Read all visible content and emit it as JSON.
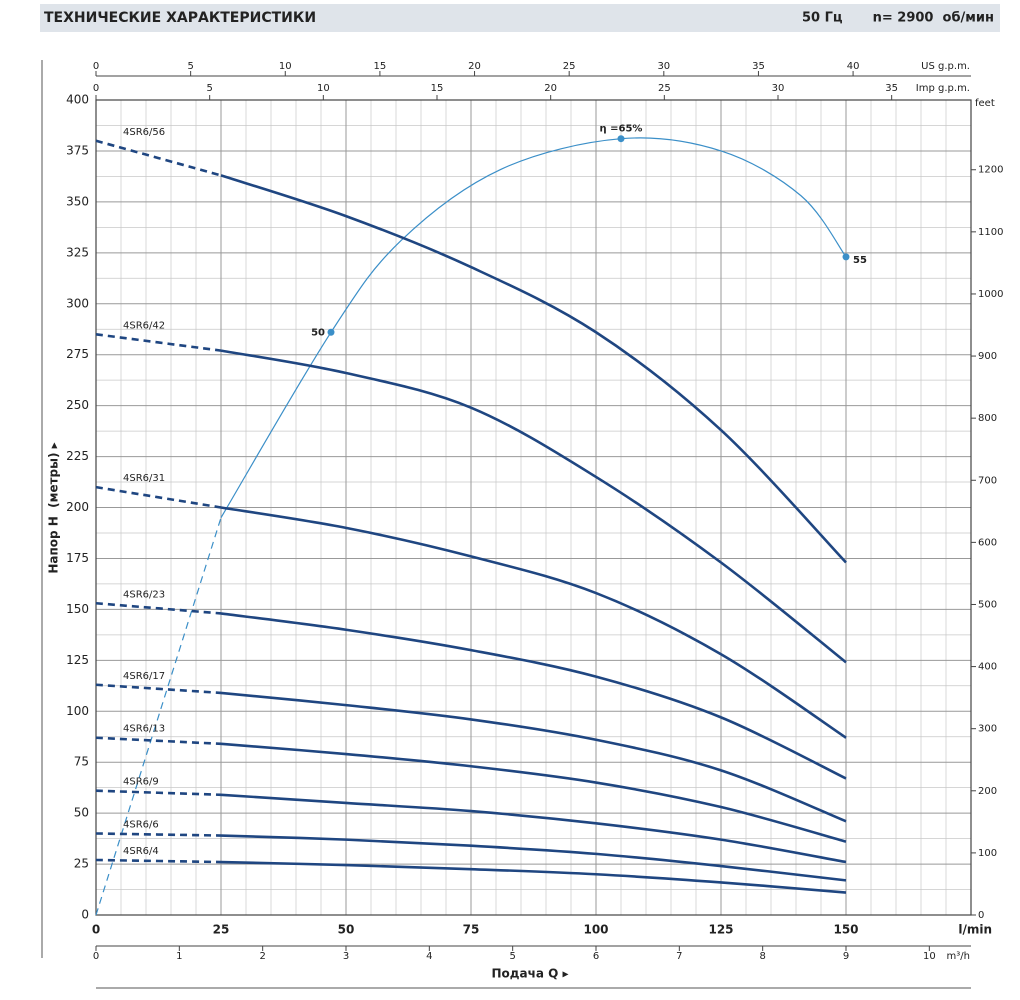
{
  "chart_data": {
    "type": "line",
    "title": "ТЕХНИЧЕСКИЕ ХАРАКТЕРИСТИКИ",
    "frequency": "50 Гц",
    "speed": "n= 2900  об/мин",
    "x_label": "Подача Q ▸",
    "y_label": "Напор H  (метры) ▸",
    "x_unit": "l/min",
    "xlim": [
      0,
      175
    ],
    "xticks": [
      0,
      25,
      50,
      75,
      100,
      125,
      150
    ],
    "ylim": [
      0,
      400
    ],
    "yticks": [
      0,
      25,
      50,
      75,
      100,
      125,
      150,
      175,
      200,
      225,
      250,
      275,
      300,
      325,
      350,
      375,
      400
    ],
    "grid": true,
    "x": [
      0,
      25,
      50,
      75,
      100,
      125,
      150
    ],
    "series": [
      {
        "name": "4SR6/56",
        "color": "#1f4681",
        "values": [
          380,
          363,
          343,
          318,
          286,
          238,
          173
        ]
      },
      {
        "name": "4SR6/42",
        "color": "#1f4681",
        "values": [
          285,
          277,
          266,
          249,
          215,
          173,
          124
        ]
      },
      {
        "name": "4SR6/31",
        "color": "#1f4681",
        "values": [
          210,
          200,
          190,
          176,
          158,
          128,
          87
        ]
      },
      {
        "name": "4SR6/23",
        "color": "#1f4681",
        "values": [
          153,
          148,
          140,
          130,
          117,
          97,
          67
        ]
      },
      {
        "name": "4SR6/17",
        "color": "#1f4681",
        "values": [
          113,
          109,
          103,
          96,
          86,
          71,
          46
        ]
      },
      {
        "name": "4SR6/13",
        "color": "#1f4681",
        "values": [
          87,
          84,
          79,
          73,
          65,
          53,
          36
        ]
      },
      {
        "name": "4SR6/9",
        "color": "#1f4681",
        "values": [
          61,
          59,
          55,
          51,
          45,
          37,
          26
        ]
      },
      {
        "name": "4SR6/6",
        "color": "#1f4681",
        "values": [
          40,
          39,
          37,
          34,
          30,
          24,
          17
        ]
      },
      {
        "name": "4SR6/4",
        "color": "#1f4681",
        "values": [
          27,
          26,
          24.5,
          22.5,
          20,
          16,
          11
        ]
      }
    ],
    "efficiency": {
      "color": "#3b8fc8",
      "x": [
        0,
        25,
        47,
        61,
        81,
        105,
        125,
        141,
        150
      ],
      "values": [
        0,
        195,
        286,
        331,
        366,
        381,
        375,
        353,
        323
      ],
      "points": [
        {
          "x": 47,
          "y": 286,
          "label": "50"
        },
        {
          "x": 105,
          "y": 381,
          "label": "η =65%"
        },
        {
          "x": 150,
          "y": 323,
          "label": "55"
        }
      ]
    },
    "x2": {
      "label": "US g.p.m.",
      "lim": [
        0,
        46.23
      ],
      "ticks": [
        0,
        5,
        10,
        15,
        20,
        25,
        30,
        35,
        40
      ]
    },
    "x3": {
      "label": "Imp g.p.m.",
      "lim": [
        0,
        38.49
      ],
      "ticks": [
        0,
        5,
        10,
        15,
        20,
        25,
        30,
        35
      ]
    },
    "x4": {
      "label": "m³/h",
      "lim": [
        0,
        10.5
      ],
      "ticks": [
        0,
        1,
        2,
        3,
        4,
        5,
        6,
        7,
        8,
        9,
        10
      ]
    },
    "y2": {
      "label": "feet",
      "lim": [
        0,
        1312.3
      ],
      "ticks": [
        0,
        100,
        200,
        300,
        400,
        500,
        600,
        700,
        800,
        900,
        1000,
        1100,
        1200
      ]
    }
  }
}
